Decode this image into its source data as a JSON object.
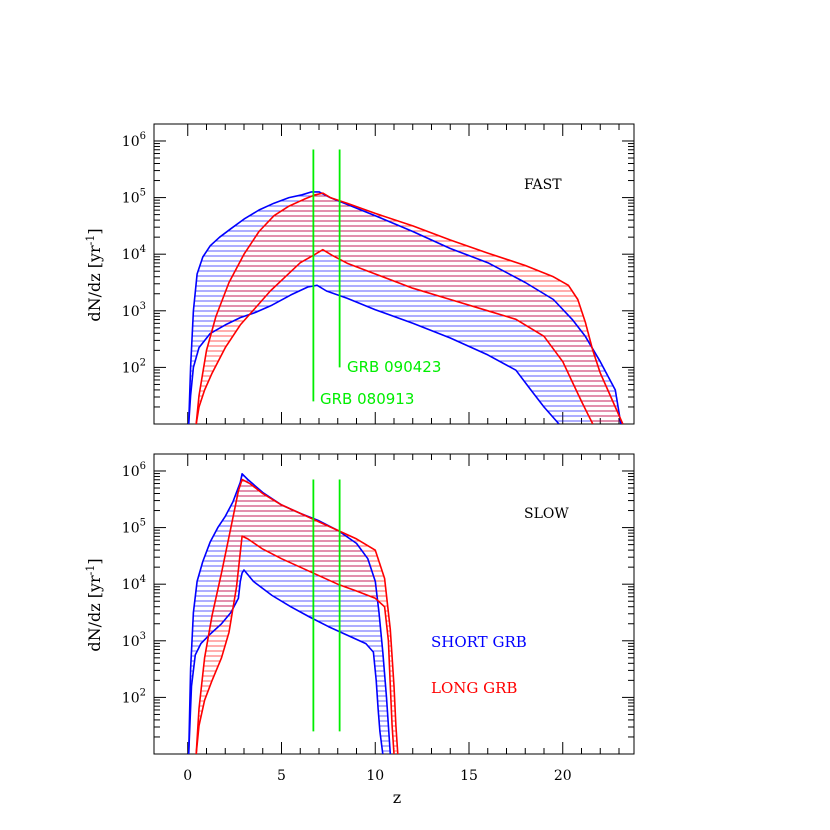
{
  "chart_data": [
    {
      "id": "fast",
      "type": "line",
      "panel_label": "FAST",
      "xlabel": "",
      "ylabel": "dN/dz [yr",
      "ylabel_sup": "-1",
      "ylabel_tail": "]",
      "xlim": [
        -1.8,
        23.8
      ],
      "ylim_log10": [
        1.0,
        6.3
      ],
      "log_y": true,
      "x_ticks": [
        0,
        5,
        10,
        15,
        20
      ],
      "y_ticks": [
        {
          "base": "10",
          "exp": "2",
          "value": 2
        },
        {
          "base": "10",
          "exp": "3",
          "value": 3
        },
        {
          "base": "10",
          "exp": "4",
          "value": 4
        },
        {
          "base": "10",
          "exp": "5",
          "value": 5
        },
        {
          "base": "10",
          "exp": "6",
          "value": 6
        }
      ],
      "vlines": [
        {
          "x": 6.7,
          "y_range_log10": [
            1.4,
            5.85
          ],
          "label": "GRB 080913"
        },
        {
          "x": 8.1,
          "y_range_log10": [
            2.0,
            5.85
          ],
          "label": "GRB 090423"
        }
      ],
      "bands": [
        {
          "name": "SHORT GRB",
          "color": "#0000ff",
          "upper": {
            "x": [
              0.05,
              0.15,
              0.3,
              0.5,
              0.8,
              1.2,
              1.7,
              2.3,
              3.0,
              3.8,
              4.6,
              5.4,
              6.1,
              6.6,
              7.0,
              7.6,
              8.5,
              10,
              12,
              14,
              16,
              18,
              19.5,
              20.5,
              21.2,
              22,
              22.8,
              23.1
            ],
            "log10": [
              1.0,
              2.0,
              3.0,
              3.65,
              3.95,
              4.15,
              4.3,
              4.45,
              4.62,
              4.78,
              4.9,
              5.0,
              5.05,
              5.1,
              5.1,
              5.0,
              4.88,
              4.68,
              4.4,
              4.1,
              3.85,
              3.5,
              3.2,
              2.85,
              2.55,
              2.1,
              1.6,
              1.0
            ]
          },
          "lower": {
            "x": [
              0.05,
              0.15,
              0.3,
              0.6,
              1.2,
              2.0,
              2.8,
              3.6,
              4.5,
              5.5,
              6.4,
              6.9,
              7.4,
              8.5,
              10,
              12,
              14,
              16,
              17.5,
              18.3,
              19.0,
              19.8
            ],
            "log10": [
              1.0,
              1.5,
              2.0,
              2.35,
              2.6,
              2.75,
              2.88,
              2.97,
              3.1,
              3.28,
              3.42,
              3.45,
              3.35,
              3.22,
              3.02,
              2.78,
              2.52,
              2.22,
              1.95,
              1.6,
              1.3,
              1.0
            ]
          }
        },
        {
          "name": "LONG GRB",
          "color": "#ff0000",
          "upper": {
            "x": [
              0.45,
              0.6,
              1.0,
              1.5,
              2.2,
              3.0,
              3.8,
              4.6,
              5.4,
              6.2,
              6.8,
              7.2,
              7.6,
              8.5,
              10,
              12,
              14,
              16,
              18,
              19.5,
              20.3,
              20.8,
              21.2,
              21.6,
              22.0,
              22.4,
              22.8,
              23.2
            ],
            "log10": [
              1.0,
              1.5,
              2.3,
              2.9,
              3.5,
              4.0,
              4.4,
              4.68,
              4.85,
              4.97,
              5.05,
              5.08,
              5.0,
              4.9,
              4.72,
              4.5,
              4.25,
              4.02,
              3.8,
              3.6,
              3.45,
              3.2,
              2.8,
              2.3,
              1.9,
              1.6,
              1.3,
              1.0
            ]
          },
          "lower": {
            "x": [
              0.45,
              0.6,
              0.9,
              1.3,
              2.0,
              2.8,
              3.6,
              4.4,
              5.2,
              6.0,
              6.7,
              7.2,
              7.7,
              8.5,
              10,
              12,
              14,
              16,
              17.5,
              19,
              20,
              20.5,
              21,
              21.3,
              21.6
            ],
            "log10": [
              1.0,
              1.3,
              1.6,
              1.9,
              2.35,
              2.75,
              3.05,
              3.35,
              3.6,
              3.85,
              3.98,
              4.08,
              3.98,
              3.84,
              3.65,
              3.4,
              3.2,
              3.0,
              2.85,
              2.55,
              2.1,
              1.75,
              1.4,
              1.2,
              1.0
            ]
          }
        }
      ]
    },
    {
      "id": "slow",
      "type": "line",
      "panel_label": "SLOW",
      "xlabel": "z",
      "ylabel": "dN/dz [yr",
      "ylabel_sup": "-1",
      "ylabel_tail": "]",
      "xlim": [
        -1.8,
        23.8
      ],
      "ylim_log10": [
        1.0,
        6.3
      ],
      "log_y": true,
      "x_ticks": [
        0,
        5,
        10,
        15,
        20
      ],
      "y_ticks": [
        {
          "base": "10",
          "exp": "2",
          "value": 2
        },
        {
          "base": "10",
          "exp": "3",
          "value": 3
        },
        {
          "base": "10",
          "exp": "4",
          "value": 4
        },
        {
          "base": "10",
          "exp": "5",
          "value": 5
        },
        {
          "base": "10",
          "exp": "6",
          "value": 6
        }
      ],
      "vlines": [
        {
          "x": 6.7,
          "y_range_log10": [
            1.4,
            5.85
          ],
          "label": ""
        },
        {
          "x": 8.1,
          "y_range_log10": [
            1.4,
            5.85
          ],
          "label": ""
        }
      ],
      "bands": [
        {
          "name": "SHORT GRB",
          "color": "#0000ff",
          "upper": {
            "x": [
              0.05,
              0.15,
              0.3,
              0.5,
              0.8,
              1.2,
              1.6,
              2.0,
              2.4,
              2.8,
              2.9,
              3.2,
              4,
              5,
              6,
              7,
              8,
              9,
              9.6,
              10.0,
              10.2,
              10.4,
              10.6,
              10.7,
              10.8
            ],
            "log10": [
              1.0,
              2.5,
              3.5,
              4.05,
              4.4,
              4.75,
              5.0,
              5.2,
              5.45,
              5.8,
              5.95,
              5.85,
              5.62,
              5.4,
              5.25,
              5.12,
              4.95,
              4.72,
              4.45,
              4.05,
              3.5,
              2.8,
              2.0,
              1.5,
              1.0
            ]
          },
          "lower": {
            "x": [
              0.05,
              0.2,
              0.4,
              0.7,
              1.2,
              1.8,
              2.3,
              2.7,
              2.8,
              2.9,
              3.0,
              3.5,
              4.5,
              5.5,
              6.5,
              7.5,
              8.5,
              9.5,
              9.9,
              10.05,
              10.15,
              10.25,
              10.4
            ],
            "log10": [
              1.0,
              2.2,
              2.75,
              2.95,
              3.12,
              3.3,
              3.5,
              3.75,
              4.05,
              4.2,
              4.25,
              4.05,
              3.8,
              3.6,
              3.42,
              3.25,
              3.1,
              2.95,
              2.8,
              2.3,
              1.8,
              1.4,
              1.0
            ]
          }
        },
        {
          "name": "LONG GRB",
          "color": "#ff0000",
          "upper": {
            "x": [
              0.45,
              0.6,
              0.9,
              1.3,
              1.8,
              2.3,
              2.7,
              2.9,
              3.3,
              4,
              5,
              6,
              7,
              8,
              9,
              10,
              10.5,
              10.8,
              11.0,
              11.1,
              11.2
            ],
            "log10": [
              1.0,
              1.8,
              2.7,
              3.45,
              4.2,
              5.0,
              5.65,
              5.85,
              5.78,
              5.6,
              5.4,
              5.25,
              5.1,
              4.95,
              4.8,
              4.6,
              4.1,
              3.2,
              2.2,
              1.5,
              1.0
            ]
          },
          "lower": {
            "x": [
              0.45,
              0.6,
              0.9,
              1.3,
              1.8,
              2.2,
              2.6,
              2.9,
              3.2,
              4,
              5,
              6,
              7,
              8,
              9,
              10,
              10.5,
              10.7,
              10.8,
              10.9,
              11.0
            ],
            "log10": [
              1.0,
              1.5,
              1.95,
              2.3,
              2.7,
              3.15,
              3.95,
              4.85,
              4.8,
              4.62,
              4.45,
              4.3,
              4.15,
              4.0,
              3.88,
              3.75,
              3.6,
              3.0,
              2.2,
              1.5,
              1.0
            ]
          }
        }
      ]
    }
  ],
  "legend": {
    "items": [
      {
        "label": "SHORT GRB",
        "color": "#0000ff"
      },
      {
        "label": "LONG GRB",
        "color": "#ff0000"
      }
    ]
  },
  "colors": {
    "short": "#0000ff",
    "long": "#ff0000",
    "vline": "#00ee00",
    "axis": "#000000"
  }
}
